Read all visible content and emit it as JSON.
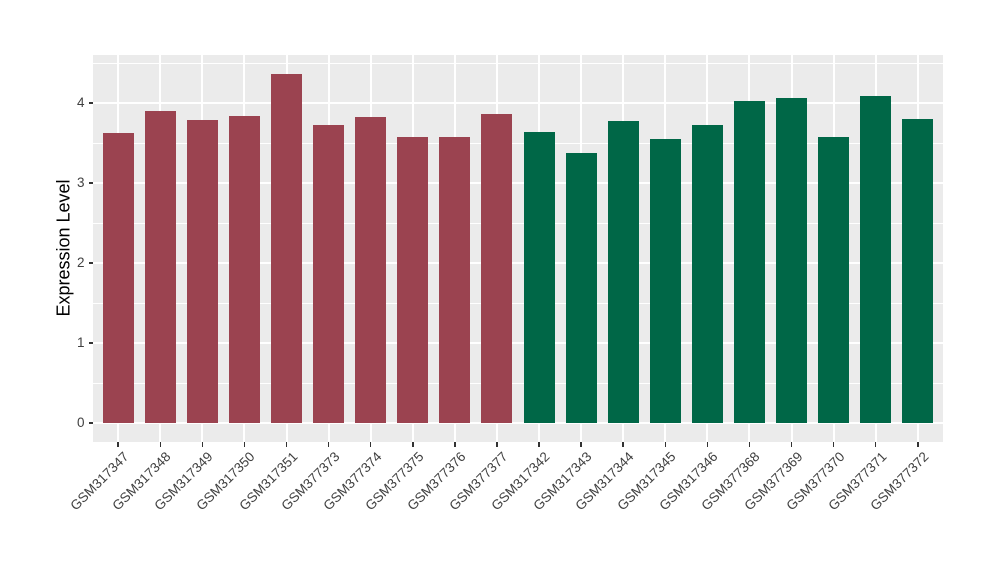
{
  "chart_data": {
    "type": "bar",
    "title": "",
    "xlabel": "",
    "ylabel": "Expression Level",
    "yticks": [
      0,
      1,
      2,
      3,
      4
    ],
    "y_minor_ticks": [
      0.5,
      1.5,
      2.5,
      3.5,
      4.5
    ],
    "ylim": [
      0,
      4.57
    ],
    "grid": "white major+minor horizontal lines, white major vertical line per category, gray panel",
    "legend_position": "none",
    "groups": [
      {
        "name": "maroon-group",
        "color": "#9B4350",
        "categories": [
          "GSM317347",
          "GSM317348",
          "GSM317349",
          "GSM317350",
          "GSM317351",
          "GSM377373",
          "GSM377374",
          "GSM377375",
          "GSM377376",
          "GSM377377"
        ],
        "values": [
          3.62,
          3.9,
          3.79,
          3.84,
          4.36,
          3.72,
          3.82,
          3.57,
          3.57,
          3.86
        ]
      },
      {
        "name": "green-group",
        "color": "#006747",
        "categories": [
          "GSM317342",
          "GSM317343",
          "GSM317344",
          "GSM317345",
          "GSM317346",
          "GSM377368",
          "GSM377369",
          "GSM377370",
          "GSM377371",
          "GSM377372"
        ],
        "values": [
          3.64,
          3.37,
          3.78,
          3.55,
          3.72,
          4.02,
          4.06,
          3.58,
          4.09,
          3.8
        ]
      }
    ]
  },
  "style": {
    "figure_bg": "#FFFFFF",
    "panel_bg": "#EBEBEB",
    "gridline_color": "#FFFFFF",
    "tick_mark_color": "#333333",
    "axis_text_color": "#404040",
    "axis_title_color": "#000000"
  }
}
